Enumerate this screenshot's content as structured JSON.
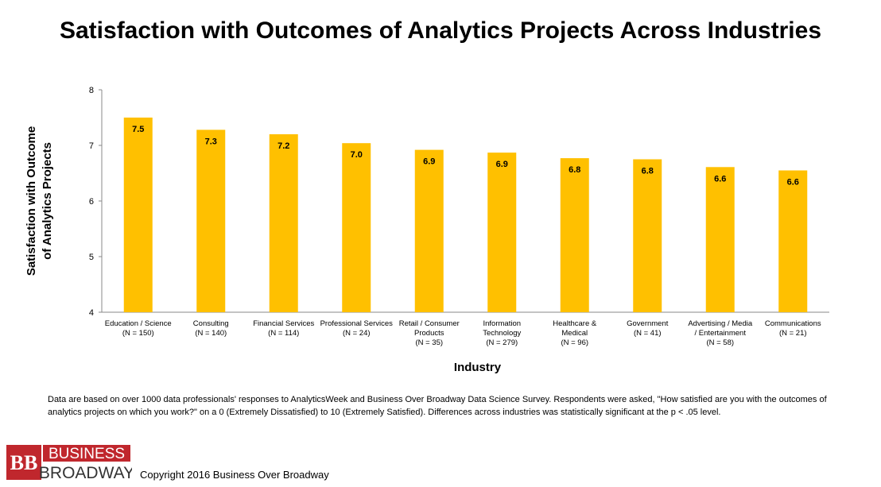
{
  "title": "Satisfaction with Outcomes of Analytics Projects Across Industries",
  "footnote": "Data are based on over 1000 data professionals' responses to AnalyticsWeek and Business Over Broadway Data Science Survey. Respondents were asked, \"How satisfied are you with the outcomes of analytics projects on which you work?\" on a 0 (Extremely Dissatisfied) to 10 (Extremely Satisfied). Differences across industries was statistically significant at the p < .05 level.",
  "logo": {
    "monogram": "BB",
    "line1": "BUSINESS",
    "line2": "BROADWAY",
    "brand_red": "#c0272d"
  },
  "copyright": "Copyright 2016 Business Over Broadway",
  "chart_data": {
    "type": "bar",
    "title": "Satisfaction with Outcomes of Analytics Projects Across Industries",
    "xlabel": "Industry",
    "ylabel": "Satisfaction with Outcome of Analytics Projects",
    "ylabel_lines": [
      "Satisfaction with Outcome",
      "of Analytics Projects"
    ],
    "ylim": [
      4,
      8
    ],
    "yticks": [
      4,
      5,
      6,
      7,
      8
    ],
    "grid": false,
    "bar_color": "#ffc000",
    "categories": [
      [
        "Education / Science",
        "(N = 150)"
      ],
      [
        "Consulting",
        "(N = 140)"
      ],
      [
        "Financial Services",
        "(N = 114)"
      ],
      [
        "Professional Services",
        "(N = 24)"
      ],
      [
        "Retail / Consumer",
        "Products",
        "(N = 35)"
      ],
      [
        "Information",
        "Technology",
        "(N = 279)"
      ],
      [
        "Healthcare &",
        "Medical",
        "(N = 96)"
      ],
      [
        "Government",
        "(N = 41)"
      ],
      [
        "Advertising / Media",
        "/ Entertainment",
        "(N = 58)"
      ],
      [
        "Communications",
        "(N = 21)"
      ]
    ],
    "values": [
      7.5,
      7.28,
      7.2,
      7.04,
      6.92,
      6.87,
      6.77,
      6.75,
      6.61,
      6.55
    ],
    "data_labels": [
      "7.5",
      "7.3",
      "7.2",
      "7.0",
      "6.9",
      "6.9",
      "6.8",
      "6.8",
      "6.6",
      "6.6"
    ]
  }
}
